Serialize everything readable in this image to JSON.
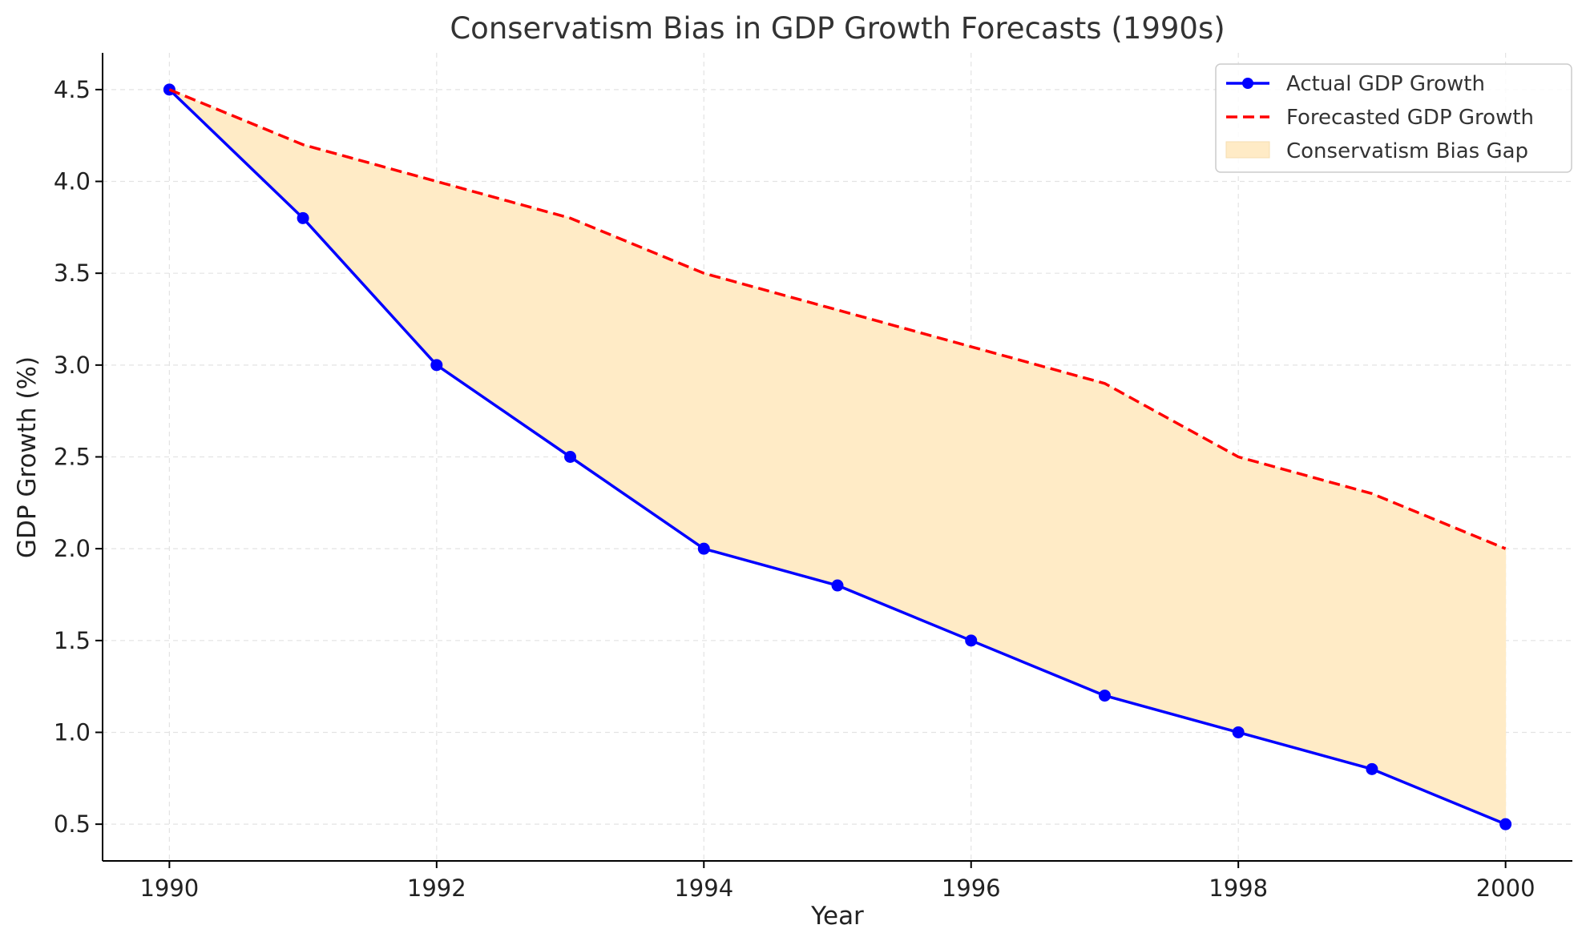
{
  "chart_data": {
    "type": "line",
    "title": "Conservatism Bias in GDP Growth Forecasts (1990s)",
    "xlabel": "Year",
    "ylabel": "GDP Growth (%)",
    "x": [
      1990,
      1991,
      1992,
      1993,
      1994,
      1995,
      1996,
      1997,
      1998,
      1999,
      2000
    ],
    "xlim": [
      1989.5,
      2000.5
    ],
    "ylim": [
      0.3,
      4.7
    ],
    "xticks": [
      1990,
      1992,
      1994,
      1996,
      1998,
      2000
    ],
    "xtick_labels": [
      "1990",
      "1992",
      "1994",
      "1996",
      "1998",
      "2000"
    ],
    "yticks": [
      0.5,
      1.0,
      1.5,
      2.0,
      2.5,
      3.0,
      3.5,
      4.0,
      4.5
    ],
    "ytick_labels": [
      "0.5",
      "1.0",
      "1.5",
      "2.0",
      "2.5",
      "3.0",
      "3.5",
      "4.0",
      "4.5"
    ],
    "grid": true,
    "legend_position": "top-right",
    "series": [
      {
        "name": "Actual GDP Growth",
        "values": [
          4.5,
          3.8,
          3.0,
          2.5,
          2.0,
          1.8,
          1.5,
          1.2,
          1.0,
          0.8,
          0.5
        ],
        "color": "#0000ff",
        "style": "solid",
        "marker": "circle"
      },
      {
        "name": "Forecasted GDP Growth",
        "values": [
          4.5,
          4.2,
          4.0,
          3.8,
          3.5,
          3.3,
          3.1,
          2.9,
          2.5,
          2.3,
          2.0
        ],
        "color": "#ff0000",
        "style": "dashed",
        "marker": "none"
      }
    ],
    "fill_between": {
      "name": "Conservatism Bias Gap",
      "color": "#ffebc6"
    }
  }
}
